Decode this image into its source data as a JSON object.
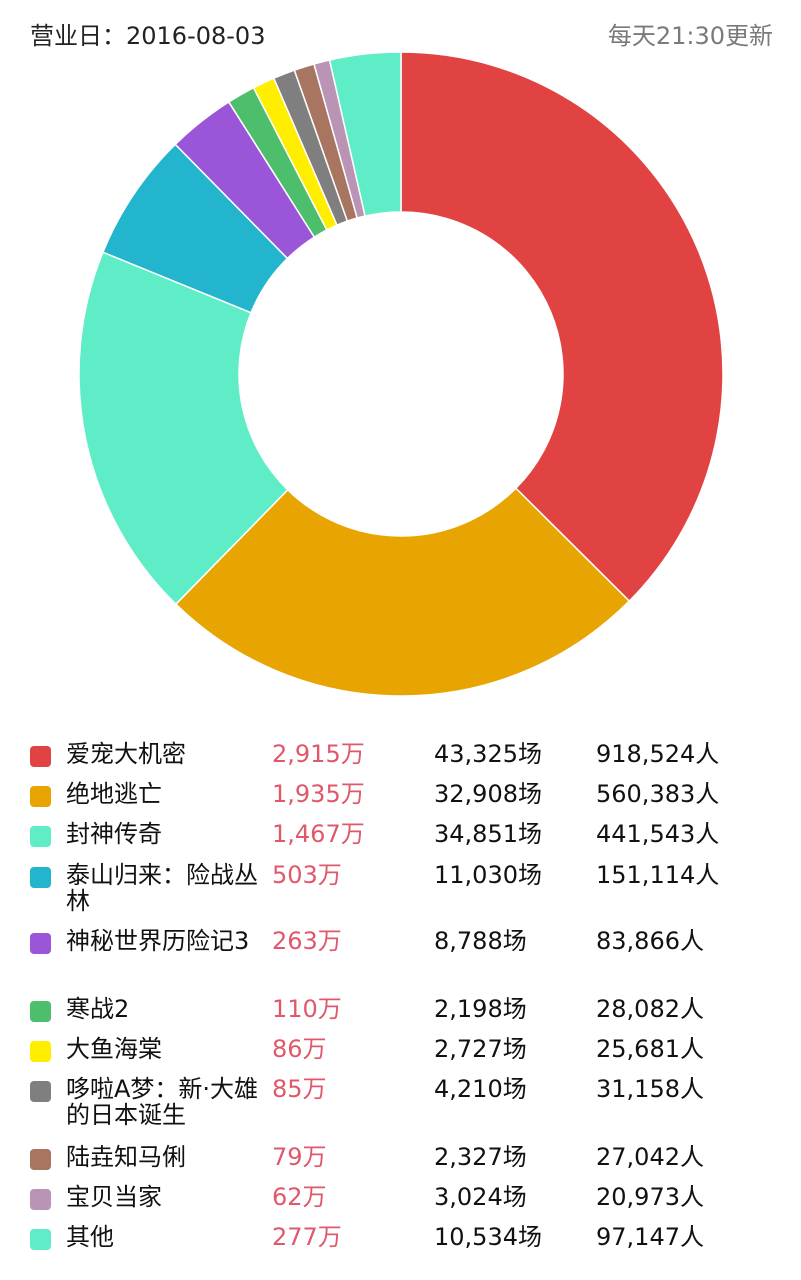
{
  "header": {
    "business_date": "营业日：2016-08-03",
    "update_note": "每天21:30更新"
  },
  "chart_data": {
    "type": "pie",
    "donut": true,
    "legend_placement": "bottom",
    "columns": [
      "film",
      "box_office",
      "shows",
      "attendance"
    ],
    "rows": [
      {
        "name": "爱宠大机密",
        "value": 2915,
        "box_office": "2,915万",
        "shows": "43,325场",
        "attendance": "918,524人",
        "color": "#e14242"
      },
      {
        "name": "绝地逃亡",
        "value": 1935,
        "box_office": "1,935万",
        "shows": "32,908场",
        "attendance": "560,383人",
        "color": "#e8a400"
      },
      {
        "name": "封神传奇",
        "value": 1467,
        "box_office": "1,467万",
        "shows": "34,851场",
        "attendance": "441,543人",
        "color": "#5eedc6"
      },
      {
        "name": "泰山归来：险战丛林",
        "value": 503,
        "box_office": "503万",
        "shows": "11,030场",
        "attendance": "151,114人",
        "color": "#22b5cd"
      },
      {
        "name": "神秘世界历险记3",
        "value": 263,
        "box_office": "263万",
        "shows": "8,788场",
        "attendance": "83,866人",
        "color": "#9b55d9"
      },
      {
        "name": "寒战2",
        "value": 110,
        "box_office": "110万",
        "shows": "2,198场",
        "attendance": "28,082人",
        "color": "#4cbe6c"
      },
      {
        "name": "大鱼海棠",
        "value": 86,
        "box_office": "86万",
        "shows": "2,727场",
        "attendance": "25,681人",
        "color": "#ffee00"
      },
      {
        "name": "哆啦A梦：新·大雄的日本诞生",
        "value": 85,
        "box_office": "85万",
        "shows": "4,210场",
        "attendance": "31,158人",
        "color": "#7f7f7f"
      },
      {
        "name": "陆垚知马俐",
        "value": 79,
        "box_office": "79万",
        "shows": "2,327场",
        "attendance": "27,042人",
        "color": "#a77560"
      },
      {
        "name": "宝贝当家",
        "value": 62,
        "box_office": "62万",
        "shows": "3,024场",
        "attendance": "20,973人",
        "color": "#b994b5"
      },
      {
        "name": "其他",
        "value": 277,
        "box_office": "277万",
        "shows": "10,534场",
        "attendance": "97,147人",
        "color": "#5eedc6"
      }
    ]
  }
}
